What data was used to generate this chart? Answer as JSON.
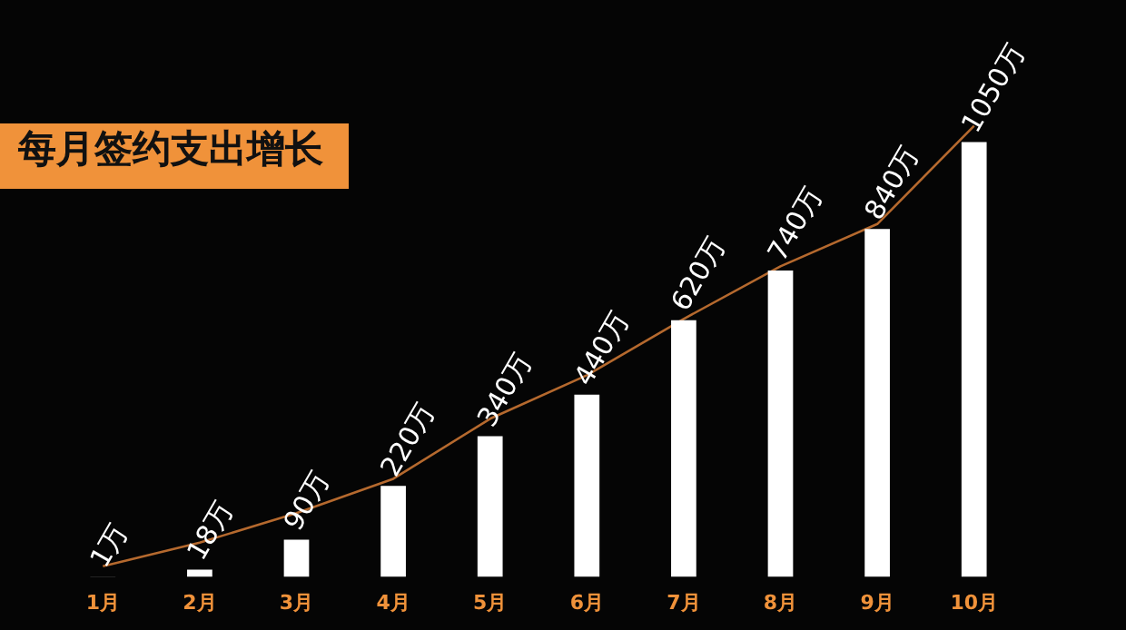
{
  "chart_data": {
    "type": "bar",
    "title": "每月签约支出增长",
    "categories": [
      "1月",
      "2月",
      "3月",
      "4月",
      "5月",
      "6月",
      "7月",
      "8月",
      "9月",
      "10月"
    ],
    "series": [
      {
        "color": "#ffffff",
        "values": [
          1,
          18,
          90,
          220,
          340,
          440,
          620,
          740,
          840,
          1050
        ],
        "value_labels": [
          "1万",
          "18万",
          "90万",
          "220万",
          "340万",
          "440万",
          "620万",
          "740万",
          "840万",
          "1050万"
        ]
      },
      {
        "type": "line",
        "color": "#b5692e",
        "values": [
          26,
          83,
          154,
          237,
          382,
          487,
          623,
          750,
          852,
          1089
        ]
      }
    ],
    "tick_labels": "x",
    "legend": false,
    "marker": "none"
  }
}
